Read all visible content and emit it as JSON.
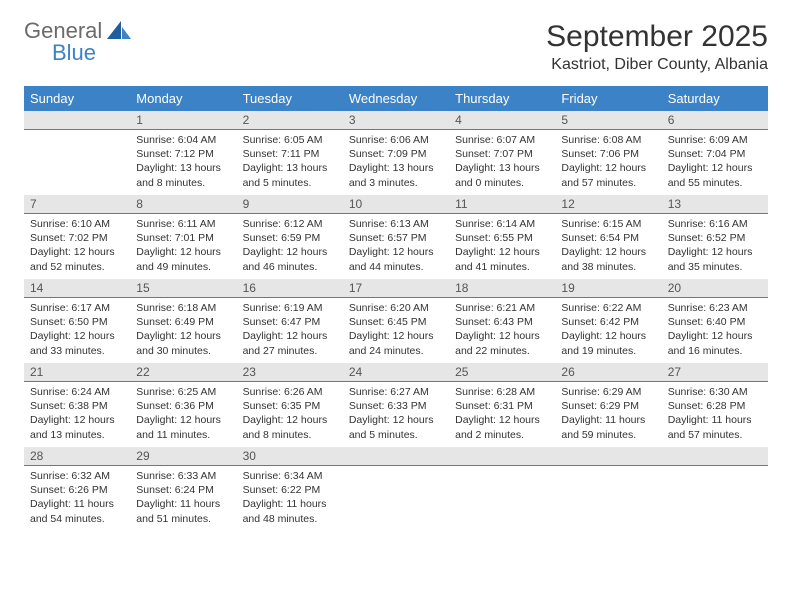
{
  "brand": {
    "word1": "General",
    "word2": "Blue"
  },
  "title": "September 2025",
  "location": "Kastriot, Diber County, Albania",
  "colors": {
    "accent": "#3b82c7",
    "header_row_bg": "#e6e6e6",
    "text": "#333333",
    "muted": "#6b6b6b",
    "bg": "#ffffff"
  },
  "typography": {
    "title_fontsize": 30,
    "location_fontsize": 16,
    "weekday_fontsize": 13,
    "daynum_fontsize": 12,
    "body_fontsize": 10.5
  },
  "weekdays": [
    "Sunday",
    "Monday",
    "Tuesday",
    "Wednesday",
    "Thursday",
    "Friday",
    "Saturday"
  ],
  "weeks": [
    [
      null,
      {
        "n": "1",
        "sunrise": "Sunrise: 6:04 AM",
        "sunset": "Sunset: 7:12 PM",
        "day1": "Daylight: 13 hours",
        "day2": "and 8 minutes."
      },
      {
        "n": "2",
        "sunrise": "Sunrise: 6:05 AM",
        "sunset": "Sunset: 7:11 PM",
        "day1": "Daylight: 13 hours",
        "day2": "and 5 minutes."
      },
      {
        "n": "3",
        "sunrise": "Sunrise: 6:06 AM",
        "sunset": "Sunset: 7:09 PM",
        "day1": "Daylight: 13 hours",
        "day2": "and 3 minutes."
      },
      {
        "n": "4",
        "sunrise": "Sunrise: 6:07 AM",
        "sunset": "Sunset: 7:07 PM",
        "day1": "Daylight: 13 hours",
        "day2": "and 0 minutes."
      },
      {
        "n": "5",
        "sunrise": "Sunrise: 6:08 AM",
        "sunset": "Sunset: 7:06 PM",
        "day1": "Daylight: 12 hours",
        "day2": "and 57 minutes."
      },
      {
        "n": "6",
        "sunrise": "Sunrise: 6:09 AM",
        "sunset": "Sunset: 7:04 PM",
        "day1": "Daylight: 12 hours",
        "day2": "and 55 minutes."
      }
    ],
    [
      {
        "n": "7",
        "sunrise": "Sunrise: 6:10 AM",
        "sunset": "Sunset: 7:02 PM",
        "day1": "Daylight: 12 hours",
        "day2": "and 52 minutes."
      },
      {
        "n": "8",
        "sunrise": "Sunrise: 6:11 AM",
        "sunset": "Sunset: 7:01 PM",
        "day1": "Daylight: 12 hours",
        "day2": "and 49 minutes."
      },
      {
        "n": "9",
        "sunrise": "Sunrise: 6:12 AM",
        "sunset": "Sunset: 6:59 PM",
        "day1": "Daylight: 12 hours",
        "day2": "and 46 minutes."
      },
      {
        "n": "10",
        "sunrise": "Sunrise: 6:13 AM",
        "sunset": "Sunset: 6:57 PM",
        "day1": "Daylight: 12 hours",
        "day2": "and 44 minutes."
      },
      {
        "n": "11",
        "sunrise": "Sunrise: 6:14 AM",
        "sunset": "Sunset: 6:55 PM",
        "day1": "Daylight: 12 hours",
        "day2": "and 41 minutes."
      },
      {
        "n": "12",
        "sunrise": "Sunrise: 6:15 AM",
        "sunset": "Sunset: 6:54 PM",
        "day1": "Daylight: 12 hours",
        "day2": "and 38 minutes."
      },
      {
        "n": "13",
        "sunrise": "Sunrise: 6:16 AM",
        "sunset": "Sunset: 6:52 PM",
        "day1": "Daylight: 12 hours",
        "day2": "and 35 minutes."
      }
    ],
    [
      {
        "n": "14",
        "sunrise": "Sunrise: 6:17 AM",
        "sunset": "Sunset: 6:50 PM",
        "day1": "Daylight: 12 hours",
        "day2": "and 33 minutes."
      },
      {
        "n": "15",
        "sunrise": "Sunrise: 6:18 AM",
        "sunset": "Sunset: 6:49 PM",
        "day1": "Daylight: 12 hours",
        "day2": "and 30 minutes."
      },
      {
        "n": "16",
        "sunrise": "Sunrise: 6:19 AM",
        "sunset": "Sunset: 6:47 PM",
        "day1": "Daylight: 12 hours",
        "day2": "and 27 minutes."
      },
      {
        "n": "17",
        "sunrise": "Sunrise: 6:20 AM",
        "sunset": "Sunset: 6:45 PM",
        "day1": "Daylight: 12 hours",
        "day2": "and 24 minutes."
      },
      {
        "n": "18",
        "sunrise": "Sunrise: 6:21 AM",
        "sunset": "Sunset: 6:43 PM",
        "day1": "Daylight: 12 hours",
        "day2": "and 22 minutes."
      },
      {
        "n": "19",
        "sunrise": "Sunrise: 6:22 AM",
        "sunset": "Sunset: 6:42 PM",
        "day1": "Daylight: 12 hours",
        "day2": "and 19 minutes."
      },
      {
        "n": "20",
        "sunrise": "Sunrise: 6:23 AM",
        "sunset": "Sunset: 6:40 PM",
        "day1": "Daylight: 12 hours",
        "day2": "and 16 minutes."
      }
    ],
    [
      {
        "n": "21",
        "sunrise": "Sunrise: 6:24 AM",
        "sunset": "Sunset: 6:38 PM",
        "day1": "Daylight: 12 hours",
        "day2": "and 13 minutes."
      },
      {
        "n": "22",
        "sunrise": "Sunrise: 6:25 AM",
        "sunset": "Sunset: 6:36 PM",
        "day1": "Daylight: 12 hours",
        "day2": "and 11 minutes."
      },
      {
        "n": "23",
        "sunrise": "Sunrise: 6:26 AM",
        "sunset": "Sunset: 6:35 PM",
        "day1": "Daylight: 12 hours",
        "day2": "and 8 minutes."
      },
      {
        "n": "24",
        "sunrise": "Sunrise: 6:27 AM",
        "sunset": "Sunset: 6:33 PM",
        "day1": "Daylight: 12 hours",
        "day2": "and 5 minutes."
      },
      {
        "n": "25",
        "sunrise": "Sunrise: 6:28 AM",
        "sunset": "Sunset: 6:31 PM",
        "day1": "Daylight: 12 hours",
        "day2": "and 2 minutes."
      },
      {
        "n": "26",
        "sunrise": "Sunrise: 6:29 AM",
        "sunset": "Sunset: 6:29 PM",
        "day1": "Daylight: 11 hours",
        "day2": "and 59 minutes."
      },
      {
        "n": "27",
        "sunrise": "Sunrise: 6:30 AM",
        "sunset": "Sunset: 6:28 PM",
        "day1": "Daylight: 11 hours",
        "day2": "and 57 minutes."
      }
    ],
    [
      {
        "n": "28",
        "sunrise": "Sunrise: 6:32 AM",
        "sunset": "Sunset: 6:26 PM",
        "day1": "Daylight: 11 hours",
        "day2": "and 54 minutes."
      },
      {
        "n": "29",
        "sunrise": "Sunrise: 6:33 AM",
        "sunset": "Sunset: 6:24 PM",
        "day1": "Daylight: 11 hours",
        "day2": "and 51 minutes."
      },
      {
        "n": "30",
        "sunrise": "Sunrise: 6:34 AM",
        "sunset": "Sunset: 6:22 PM",
        "day1": "Daylight: 11 hours",
        "day2": "and 48 minutes."
      },
      null,
      null,
      null,
      null
    ]
  ]
}
